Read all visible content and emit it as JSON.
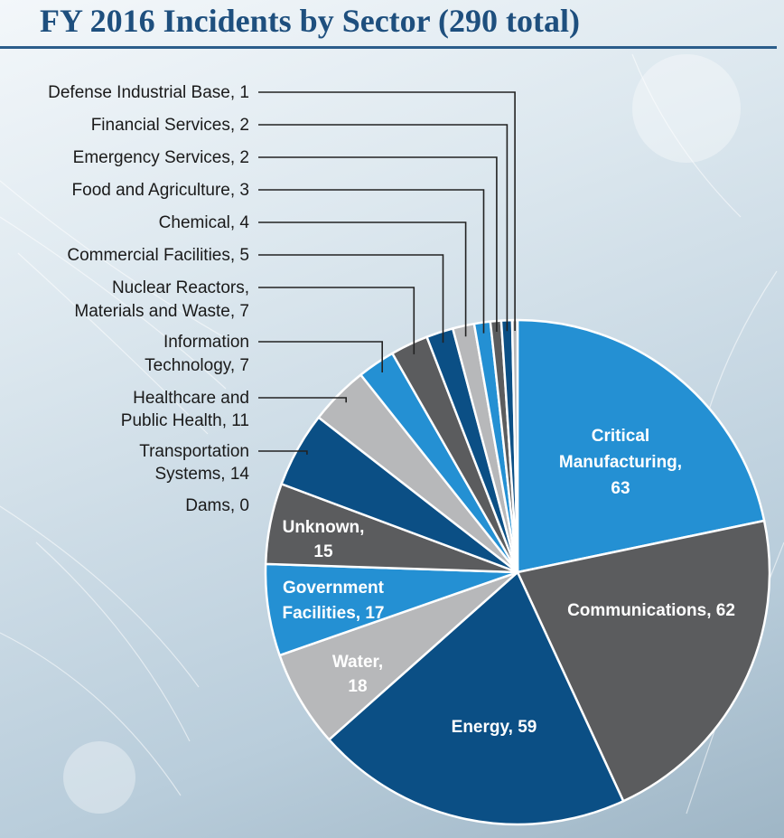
{
  "title": "FY 2016 Incidents by Sector (290 total)",
  "chart_data": {
    "type": "pie",
    "title": "FY 2016 Incidents by Sector (290 total)",
    "total": 290,
    "slices": [
      {
        "label": "Critical Manufacturing",
        "value": 63,
        "color": "#2490d3",
        "lines": [
          "Critical",
          "Manufacturing,",
          "63"
        ]
      },
      {
        "label": "Communications",
        "value": 62,
        "color": "#5b5c5e",
        "lines": [
          "Communications, 62"
        ]
      },
      {
        "label": "Energy",
        "value": 59,
        "color": "#0b4f85",
        "lines": [
          "Energy, 59"
        ]
      },
      {
        "label": "Water",
        "value": 18,
        "color": "#b7b8ba",
        "lines": [
          "Water,",
          "18"
        ]
      },
      {
        "label": "Government Facilities",
        "value": 17,
        "color": "#2490d3",
        "lines": [
          "Government",
          "Facilities, 17"
        ]
      },
      {
        "label": "Unknown",
        "value": 15,
        "color": "#5b5c5e",
        "lines": [
          "Unknown,",
          "15"
        ]
      },
      {
        "label": "Dams",
        "value": 0,
        "color": "#b7b8ba",
        "lines": [
          "Dams, 0"
        ]
      },
      {
        "label": "Transportation Systems",
        "value": 14,
        "color": "#0b4f85",
        "lines": [
          "Transportation",
          "Systems, 14"
        ]
      },
      {
        "label": "Healthcare and Public Health",
        "value": 11,
        "color": "#b7b8ba",
        "lines": [
          "Healthcare and",
          "Public Health, 11"
        ]
      },
      {
        "label": "Information Technology",
        "value": 7,
        "color": "#2490d3",
        "lines": [
          "Information",
          "Technology, 7"
        ]
      },
      {
        "label": "Nuclear Reactors, Materials and Waste",
        "value": 7,
        "color": "#5b5c5e",
        "lines": [
          "Nuclear Reactors,",
          "Materials and Waste, 7"
        ]
      },
      {
        "label": "Commercial Facilities",
        "value": 5,
        "color": "#0b4f85",
        "lines": [
          "Commercial Facilities, 5"
        ]
      },
      {
        "label": "Chemical",
        "value": 4,
        "color": "#b7b8ba",
        "lines": [
          "Chemical, 4"
        ]
      },
      {
        "label": "Food and Agriculture",
        "value": 3,
        "color": "#2490d3",
        "lines": [
          "Food and Agriculture, 3"
        ]
      },
      {
        "label": "Emergency Services",
        "value": 2,
        "color": "#5b5c5e",
        "lines": [
          "Emergency Services, 2"
        ]
      },
      {
        "label": "Financial Services",
        "value": 2,
        "color": "#0b4f85",
        "lines": [
          "Financial Services, 2"
        ]
      },
      {
        "label": "Defense Industrial Base",
        "value": 1,
        "color": "#b7b8ba",
        "lines": [
          "Defense Industrial Base, 1"
        ]
      }
    ]
  }
}
